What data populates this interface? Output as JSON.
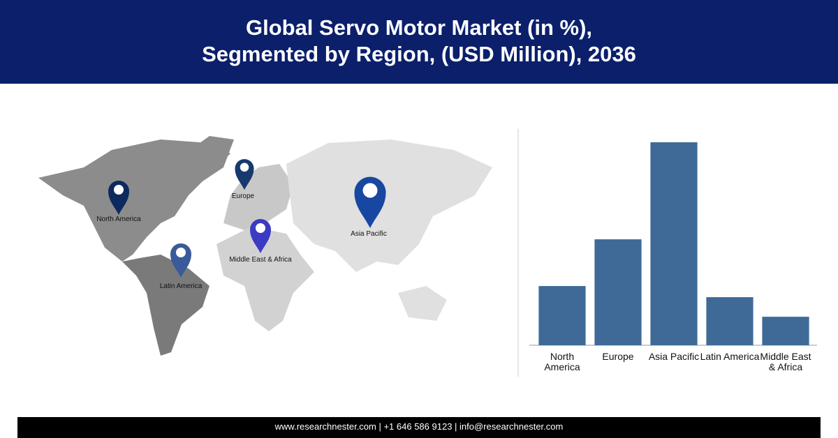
{
  "header": {
    "title_line1": "Global Servo Motor Market (in %),",
    "title_line2": "Segmented by Region, (USD Million), 2036"
  },
  "map": {
    "pins": [
      "North America",
      "Europe",
      "Asia Pacific",
      "Middle East & Africa",
      "Latin America"
    ]
  },
  "chart_data": {
    "type": "bar",
    "categories": [
      "North America",
      "Europe",
      "Asia Pacific",
      "Latin America",
      "Middle East & Africa"
    ],
    "values": [
      13.3,
      23.8,
      45.6,
      10.8,
      6.4
    ],
    "color": "#3f6a98"
  },
  "footer": {
    "text": "www.researchnester.com | +1 646 586 9123 | info@researchnester.com"
  }
}
